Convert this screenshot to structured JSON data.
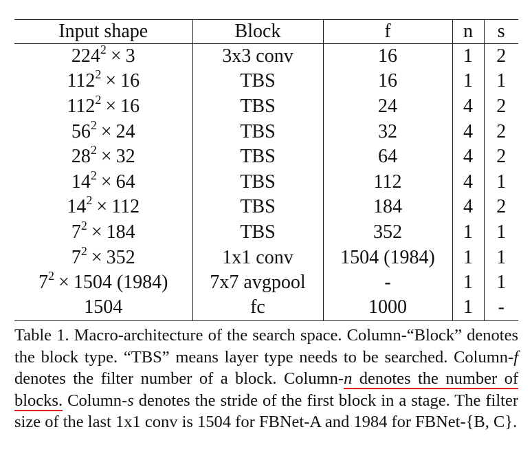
{
  "table": {
    "headers": [
      "Input shape",
      "Block",
      "f",
      "n",
      "s"
    ],
    "rows": [
      {
        "input_base": "224",
        "input_exp": "2",
        "input_tail": "3",
        "block": "3x3 conv",
        "f": "16",
        "n": "1",
        "s": "2"
      },
      {
        "input_base": "112",
        "input_exp": "2",
        "input_tail": "16",
        "block": "TBS",
        "f": "16",
        "n": "1",
        "s": "1"
      },
      {
        "input_base": "112",
        "input_exp": "2",
        "input_tail": "16",
        "block": "TBS",
        "f": "24",
        "n": "4",
        "s": "2"
      },
      {
        "input_base": "56",
        "input_exp": "2",
        "input_tail": "24",
        "block": "TBS",
        "f": "32",
        "n": "4",
        "s": "2"
      },
      {
        "input_base": "28",
        "input_exp": "2",
        "input_tail": "32",
        "block": "TBS",
        "f": "64",
        "n": "4",
        "s": "2"
      },
      {
        "input_base": "14",
        "input_exp": "2",
        "input_tail": "64",
        "block": "TBS",
        "f": "112",
        "n": "4",
        "s": "1"
      },
      {
        "input_base": "14",
        "input_exp": "2",
        "input_tail": "112",
        "block": "TBS",
        "f": "184",
        "n": "4",
        "s": "2"
      },
      {
        "input_base": "7",
        "input_exp": "2",
        "input_tail": "184",
        "block": "TBS",
        "f": "352",
        "n": "1",
        "s": "1"
      },
      {
        "input_base": "7",
        "input_exp": "2",
        "input_tail": "352",
        "block": "1x1 conv",
        "f": "1504 (1984)",
        "n": "1",
        "s": "1"
      },
      {
        "input_base": "7",
        "input_exp": "2",
        "input_tail": "1504 (1984)",
        "block": "7x7 avgpool",
        "f": "-",
        "n": "1",
        "s": "1"
      },
      {
        "input_plain": "1504",
        "block": "fc",
        "f": "1000",
        "n": "1",
        "s": "-"
      }
    ],
    "times_symbol": "×"
  },
  "caption": {
    "label": "Table 1.",
    "s1": "Macro-architecture of the search space. Column-“Block” denotes the block type. “TBS” means layer type needs to be searched. Column-",
    "var_f": "f",
    "s2": " denotes the filter number of a block. Column-",
    "var_n": "n",
    "s3_underlined": " denotes the number of blocks.",
    "s4": " Column-",
    "var_s": "s",
    "s5": " denotes the stride of the first block in a stage. The filter size of the last 1x1 conv is 1504 for FBNet-A and 1984 for FBNet-{B, C}."
  },
  "colors": {
    "text": "#111111",
    "rule": "#222222",
    "highlight_underline": "#e02020"
  }
}
